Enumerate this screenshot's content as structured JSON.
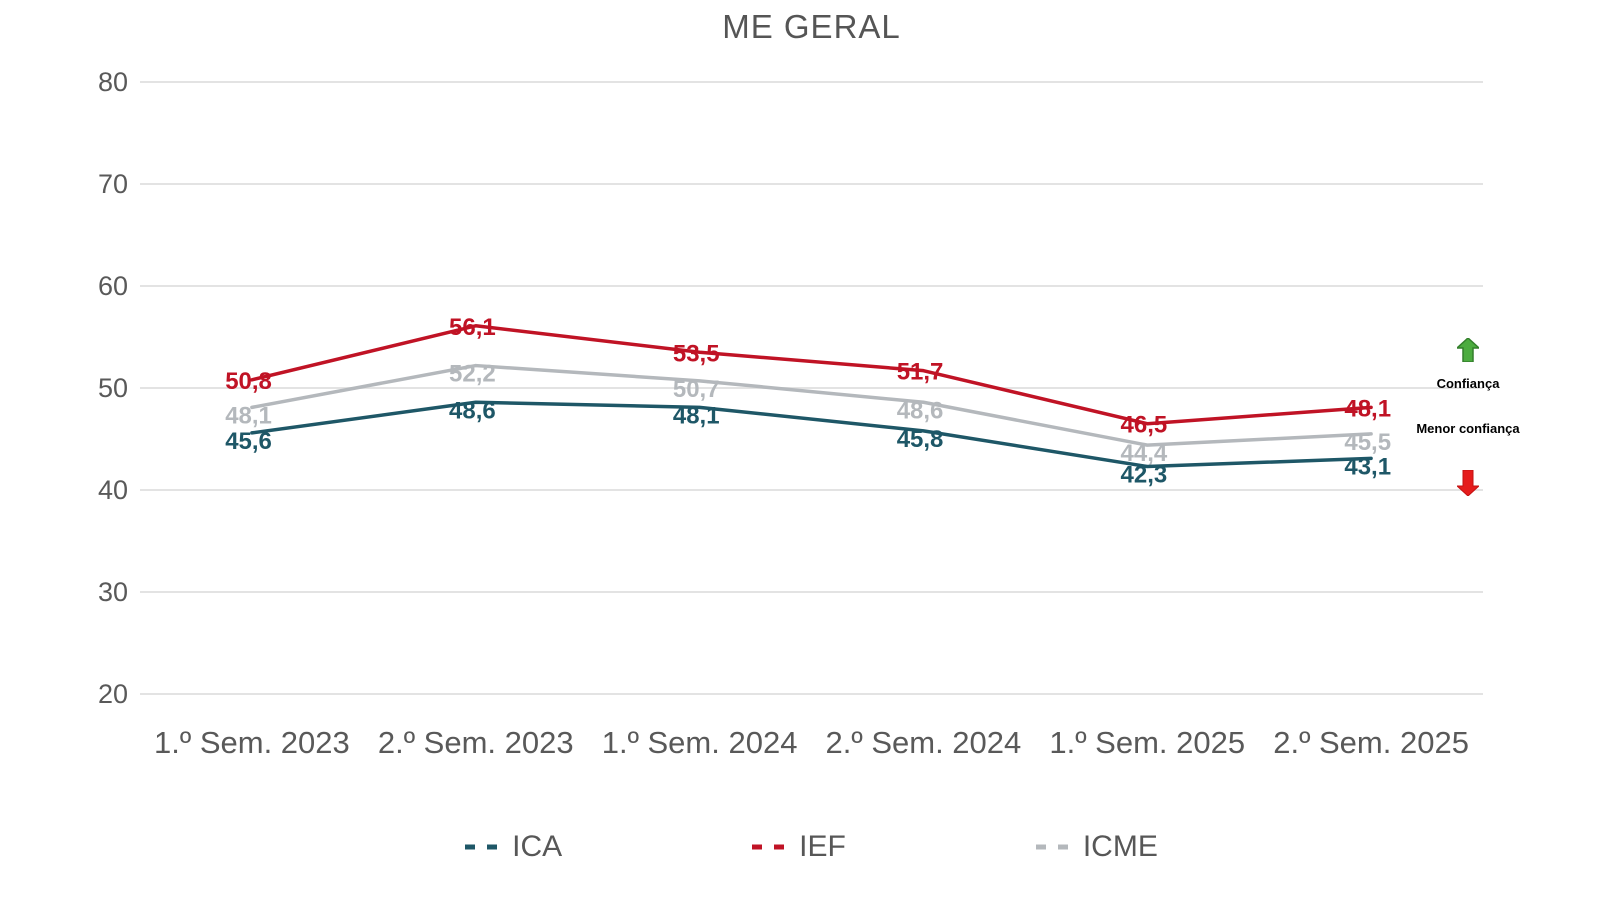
{
  "title": "ME GERAL",
  "chart_data": {
    "type": "line",
    "categories": [
      "1.º Sem. 2023",
      "2.º Sem. 2023",
      "1.º Sem. 2024",
      "2.º Sem. 2024",
      "1.º Sem. 2025",
      "2.º Sem. 2025"
    ],
    "series": [
      {
        "name": "ICME",
        "color": "#B4B8BC",
        "values": [
          48.1,
          52.2,
          50.7,
          48.6,
          44.4,
          45.5
        ],
        "labels": [
          "48,1",
          "52,2",
          "50,7",
          "48,6",
          "44,4",
          "45,5"
        ],
        "label_dy": 16
      },
      {
        "name": "ICA",
        "color": "#1E5767",
        "values": [
          45.6,
          48.6,
          48.1,
          45.8,
          42.3,
          43.1
        ],
        "labels": [
          "45,6",
          "48,6",
          "48,1",
          "45,8",
          "42,3",
          "43,1"
        ],
        "label_dy": 16
      },
      {
        "name": "IEF",
        "color": "#C01325",
        "values": [
          50.8,
          56.1,
          53.5,
          51.7,
          46.5,
          48.1
        ],
        "labels": [
          "50,8",
          "56,1",
          "53,5",
          "51,7",
          "46,5",
          "48,1"
        ],
        "label_dy": 9
      }
    ],
    "legend_order": [
      "ICA",
      "IEF",
      "ICME"
    ],
    "yticks": [
      20,
      30,
      40,
      50,
      60,
      70,
      80
    ],
    "ylim": [
      20,
      80
    ],
    "grid": true,
    "legend_position": "bottom"
  },
  "annotations": {
    "up_label": "Confiança",
    "down_label": "Menor confiança"
  },
  "colors": {
    "grid": "#E3E3E3",
    "axis_text": "#595959",
    "title_text": "#555555",
    "legend_text": "#575757",
    "up_arrow_fill": "#4CAC3F",
    "up_arrow_stroke": "#337F2B",
    "down_arrow_fill": "#E51C1C",
    "down_arrow_stroke": "#C31212"
  }
}
